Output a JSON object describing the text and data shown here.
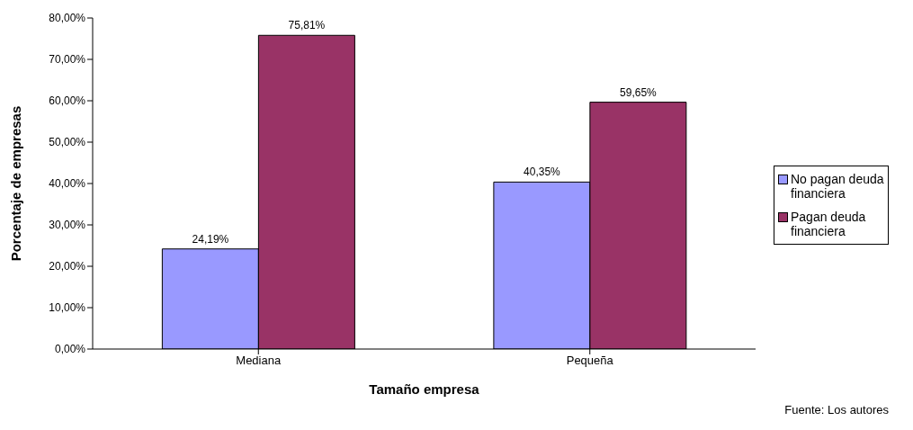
{
  "chart_data": {
    "type": "bar",
    "xlabel": "Tamaño empresa",
    "ylabel": "Porcentaje de empresas",
    "categories": [
      "Mediana",
      "Pequeña"
    ],
    "series": [
      {
        "name": "No pagan deuda financiera",
        "color": "#9999ff",
        "values": [
          24.19,
          40.35
        ],
        "value_labels": [
          "24,19%",
          "40,35%"
        ]
      },
      {
        "name": "Pagan deuda financiera",
        "color": "#993366",
        "values": [
          75.81,
          59.65
        ],
        "value_labels": [
          "75,81%",
          "59,65%"
        ]
      }
    ],
    "ylim": [
      0,
      80
    ],
    "yticks": [
      {
        "value": 0,
        "label": "0,00%"
      },
      {
        "value": 10,
        "label": "10,00%"
      },
      {
        "value": 20,
        "label": "20,00%"
      },
      {
        "value": 30,
        "label": "30,00%"
      },
      {
        "value": 40,
        "label": "40,00%"
      },
      {
        "value": 50,
        "label": "50,00%"
      },
      {
        "value": 60,
        "label": "60,00%"
      },
      {
        "value": 70,
        "label": "70,00%"
      },
      {
        "value": 80,
        "label": "80,00%"
      }
    ],
    "grid": false,
    "legend": "right",
    "annotations": [
      "Fuente: Los autores"
    ]
  }
}
